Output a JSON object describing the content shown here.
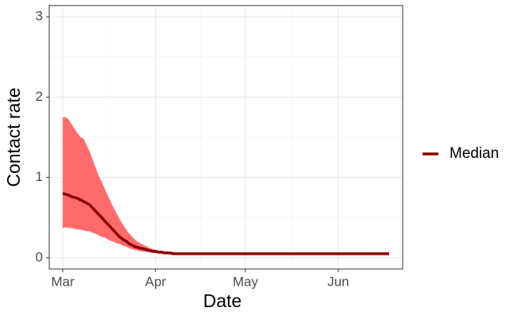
{
  "chart_data": {
    "type": "line",
    "y_label": "Contact rate",
    "x_label": "Date",
    "categories": [
      "Mar",
      null,
      null,
      null,
      null,
      null,
      null,
      null,
      null,
      null,
      null,
      null,
      null,
      null,
      null,
      null,
      null,
      null,
      null,
      null,
      null,
      null,
      null,
      null,
      null,
      null,
      null,
      null,
      null,
      null,
      null,
      "Apr",
      null,
      null,
      null,
      null,
      null,
      null,
      null,
      null,
      null,
      null,
      null,
      null,
      null,
      null,
      null,
      null,
      null,
      null,
      null,
      null,
      null,
      null,
      null,
      null,
      null,
      null,
      null,
      null,
      null,
      "May",
      null,
      null,
      null,
      null,
      null,
      null,
      null,
      null,
      null,
      null,
      null,
      null,
      null,
      null,
      null,
      null,
      null,
      null,
      null,
      null,
      null,
      null,
      null,
      null,
      null,
      null,
      null,
      null,
      null,
      null,
      "Jun",
      null,
      null,
      null,
      null,
      null,
      null,
      null,
      null,
      null,
      null,
      null,
      null,
      null,
      null,
      null,
      null,
      null
    ],
    "series": [
      {
        "name": "Median",
        "color": "#8b0000",
        "values": [
          0.8,
          0.79,
          0.78,
          0.76,
          0.75,
          0.74,
          0.72,
          0.7,
          0.68,
          0.66,
          0.62,
          0.58,
          0.54,
          0.5,
          0.46,
          0.42,
          0.38,
          0.34,
          0.3,
          0.26,
          0.23,
          0.21,
          0.18,
          0.16,
          0.14,
          0.13,
          0.12,
          0.11,
          0.1,
          0.09,
          0.08,
          0.08,
          0.07,
          0.07,
          0.06,
          0.06,
          0.06,
          0.05,
          0.05,
          0.05,
          0.05,
          0.05,
          0.05,
          0.05,
          0.05,
          0.05,
          0.05,
          0.05,
          0.05,
          0.05,
          0.05,
          0.05,
          0.05,
          0.05,
          0.05,
          0.05,
          0.05,
          0.05,
          0.05,
          0.05,
          0.05,
          0.05,
          0.05,
          0.05,
          0.05,
          0.05,
          0.05,
          0.05,
          0.05,
          0.05,
          0.05,
          0.05,
          0.05,
          0.05,
          0.05,
          0.05,
          0.05,
          0.05,
          0.05,
          0.05,
          0.05,
          0.05,
          0.05,
          0.05,
          0.05,
          0.05,
          0.05,
          0.05,
          0.05,
          0.05,
          0.05,
          0.05,
          0.05,
          0.05,
          0.05,
          0.05,
          0.05,
          0.05,
          0.05,
          0.05,
          0.05,
          0.05,
          0.05,
          0.05,
          0.05,
          0.05,
          0.05,
          0.05,
          0.05,
          0.05
        ]
      }
    ],
    "band": {
      "color": "#ff6b6b",
      "upper": [
        1.75,
        1.75,
        1.72,
        1.66,
        1.6,
        1.55,
        1.5,
        1.48,
        1.4,
        1.32,
        1.22,
        1.12,
        1.02,
        0.95,
        0.86,
        0.78,
        0.7,
        0.62,
        0.55,
        0.48,
        0.42,
        0.36,
        0.31,
        0.27,
        0.23,
        0.2,
        0.18,
        0.16,
        0.14,
        0.12,
        0.11,
        0.1,
        0.09,
        0.09,
        0.08,
        0.08,
        0.07,
        0.07,
        0.07,
        0.06,
        0.06,
        0.06,
        0.06,
        0.06,
        0.06,
        0.06,
        0.06,
        0.06,
        0.06,
        0.06,
        0.06,
        0.06,
        0.06,
        0.06,
        0.06,
        0.06,
        0.06,
        0.06,
        0.06,
        0.06,
        0.06,
        0.06,
        0.06,
        0.06,
        0.06,
        0.06,
        0.06,
        0.06,
        0.06,
        0.06,
        0.06,
        0.06,
        0.06,
        0.06,
        0.06,
        0.06,
        0.06,
        0.06,
        0.06,
        0.06,
        0.06,
        0.06,
        0.06,
        0.06,
        0.06,
        0.06,
        0.06,
        0.06,
        0.06,
        0.06,
        0.06,
        0.06,
        0.06,
        0.06,
        0.06,
        0.06,
        0.06,
        0.06,
        0.06,
        0.06,
        0.06,
        0.06,
        0.06,
        0.06,
        0.06,
        0.06,
        0.06,
        0.06,
        0.06,
        0.06
      ],
      "lower": [
        0.37,
        0.38,
        0.37,
        0.37,
        0.36,
        0.35,
        0.35,
        0.34,
        0.33,
        0.33,
        0.31,
        0.3,
        0.28,
        0.26,
        0.25,
        0.23,
        0.21,
        0.2,
        0.18,
        0.17,
        0.15,
        0.14,
        0.12,
        0.11,
        0.1,
        0.09,
        0.08,
        0.08,
        0.07,
        0.07,
        0.06,
        0.06,
        0.05,
        0.05,
        0.05,
        0.05,
        0.04,
        0.04,
        0.04,
        0.04,
        0.04,
        0.04,
        0.04,
        0.04,
        0.04,
        0.04,
        0.04,
        0.04,
        0.04,
        0.04,
        0.04,
        0.04,
        0.04,
        0.04,
        0.04,
        0.04,
        0.04,
        0.04,
        0.04,
        0.04,
        0.04,
        0.04,
        0.04,
        0.04,
        0.04,
        0.04,
        0.04,
        0.04,
        0.04,
        0.04,
        0.04,
        0.04,
        0.04,
        0.04,
        0.04,
        0.04,
        0.04,
        0.04,
        0.04,
        0.04,
        0.04,
        0.04,
        0.04,
        0.04,
        0.04,
        0.04,
        0.04,
        0.04,
        0.04,
        0.04,
        0.04,
        0.04,
        0.04,
        0.04,
        0.04,
        0.04,
        0.04,
        0.04,
        0.04,
        0.04,
        0.04,
        0.04,
        0.04,
        0.04,
        0.04,
        0.04,
        0.04,
        0.04,
        0.04,
        0.04
      ]
    },
    "ylim": [
      -0.14,
      3.14
    ],
    "yticks": [
      0,
      1,
      2,
      3
    ],
    "grid": true,
    "legend": "right"
  }
}
